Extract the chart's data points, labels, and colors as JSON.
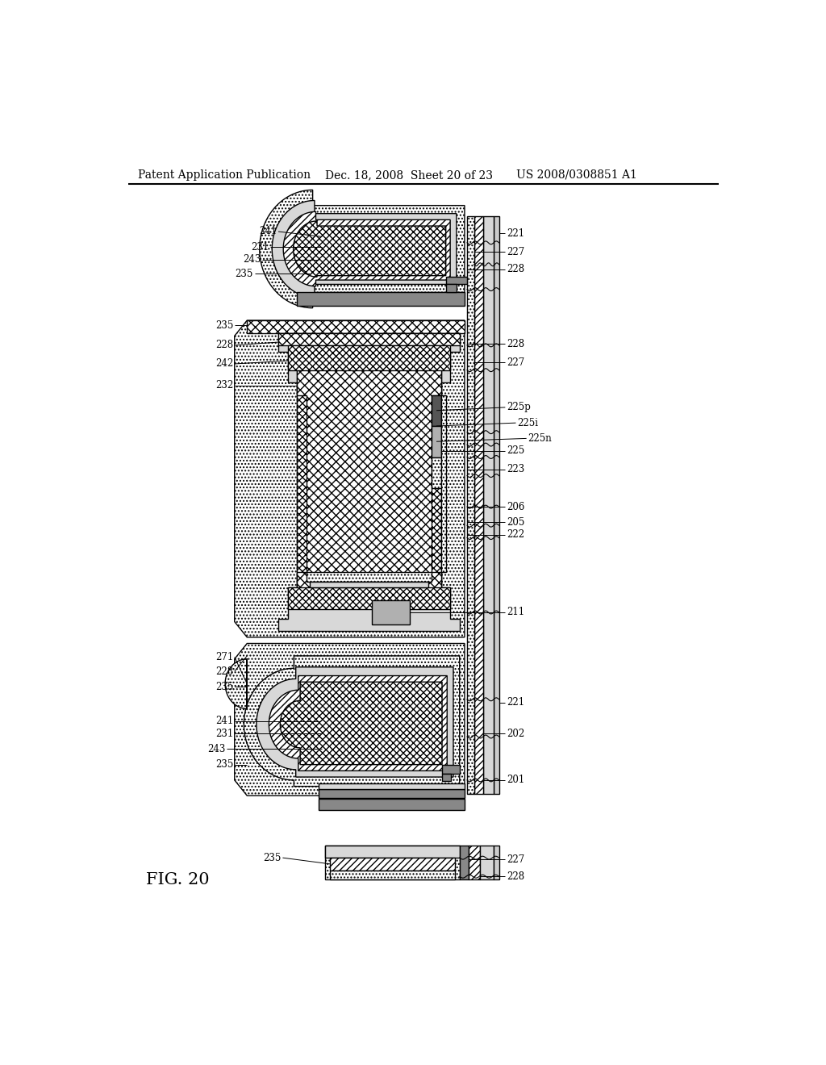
{
  "header_left": "Patent Application Publication",
  "header_mid": "Dec. 18, 2008  Sheet 20 of 23",
  "header_right": "US 2008/0308851 A1",
  "fig_label": "FIG. 20",
  "bg_color": "#ffffff",
  "lc": "#000000",
  "gray_light": "#d8d8d8",
  "gray_mid": "#b0b0b0",
  "gray_dark": "#888888",
  "gray_xdark": "#555555",
  "white": "#ffffff"
}
